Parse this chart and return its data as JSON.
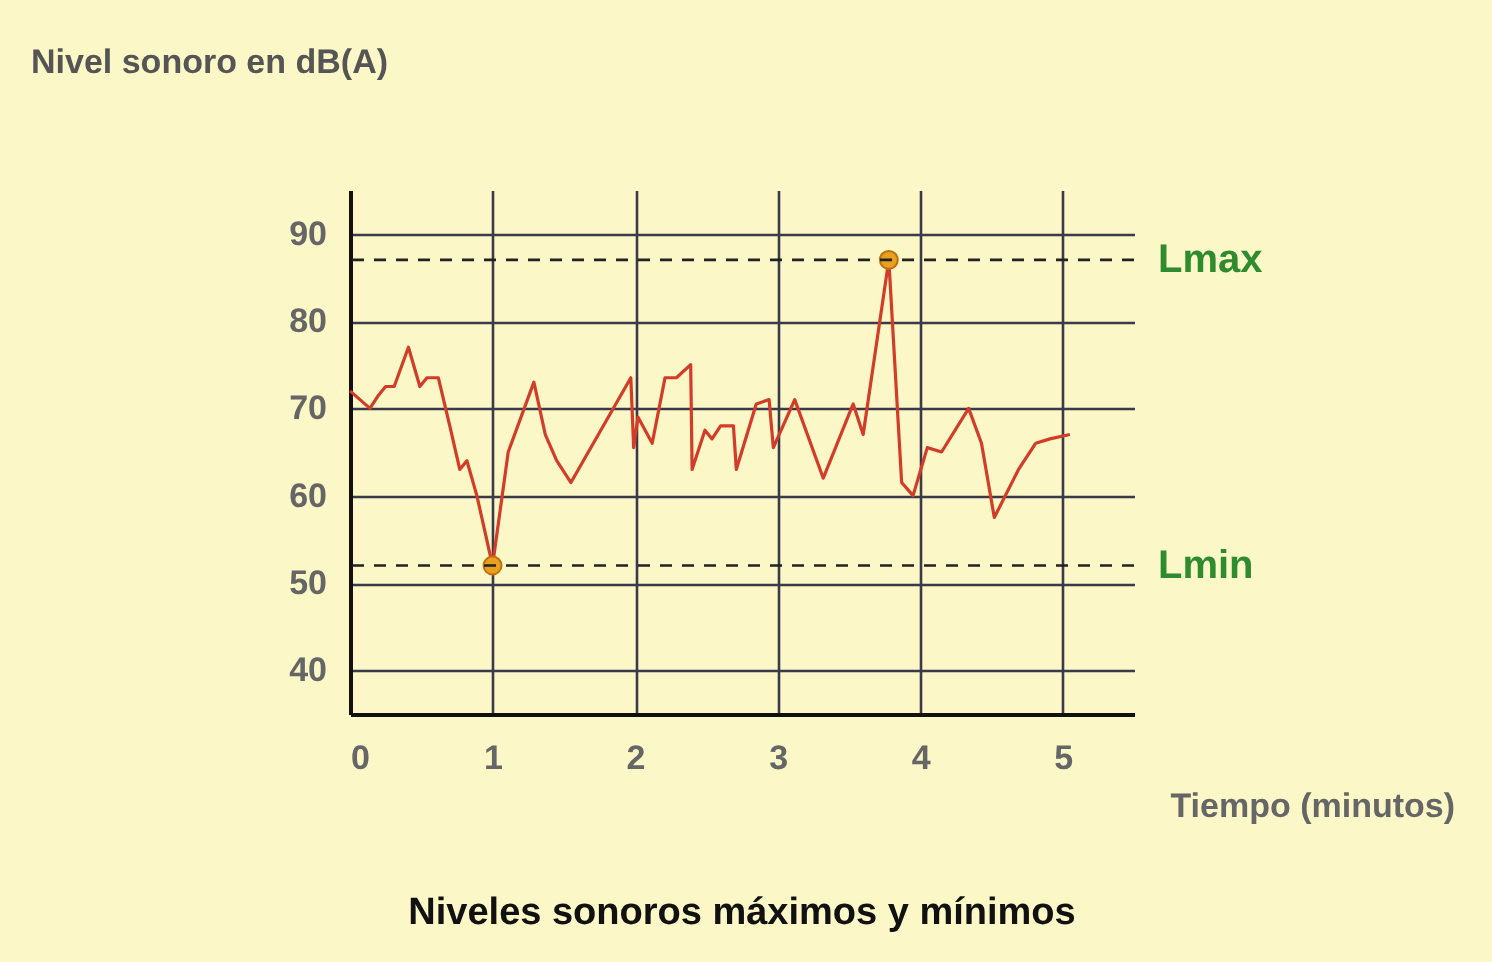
{
  "chart_data": {
    "type": "line",
    "title": "Niveles sonoros máximos y mínimos",
    "xlabel": "Tiempo (minutos)",
    "ylabel": "Nivel sonoro en dB(A)",
    "xlim": [
      0,
      5.5
    ],
    "ylim": [
      35,
      95
    ],
    "xticks": [
      0,
      1,
      2,
      3,
      4,
      5
    ],
    "yticks": [
      40,
      50,
      60,
      70,
      80,
      90
    ],
    "grid": true,
    "line_style": "solid",
    "series": [
      {
        "type": "line",
        "color": "#d23c28",
        "x": [
          0,
          0.07,
          0.14,
          0.2,
          0.25,
          0.31,
          0.41,
          0.49,
          0.54,
          0.62,
          0.7,
          0.77,
          0.82,
          0.89,
          1.0,
          1.11,
          1.29,
          1.37,
          1.45,
          1.55,
          1.97,
          1.99,
          2.02,
          2.12,
          2.21,
          2.29,
          2.39,
          2.4,
          2.49,
          2.54,
          2.6,
          2.69,
          2.71,
          2.85,
          2.94,
          2.97,
          3.12,
          3.32,
          3.53,
          3.6,
          3.78,
          3.87,
          3.95,
          4.05,
          4.15,
          4.34,
          4.43,
          4.52,
          4.69,
          4.81,
          4.91,
          5.05
        ],
        "values": [
          72,
          71,
          70,
          71.5,
          72.5,
          72.5,
          77,
          72.5,
          73.5,
          73.5,
          68,
          63,
          64,
          60,
          52,
          65,
          73,
          67,
          64,
          61.5,
          73.5,
          65.5,
          69,
          66,
          73.5,
          73.5,
          75,
          63,
          67.5,
          66.5,
          68,
          68,
          63,
          70.5,
          71,
          65.5,
          71,
          62,
          70.5,
          67,
          87,
          61.5,
          60,
          65.5,
          65,
          70,
          66,
          57.5,
          63,
          66,
          66.5,
          67
        ]
      },
      {
        "type": "scatter",
        "color": "#e8a020",
        "marker": "circle",
        "x": [
          1.0,
          3.78
        ],
        "values": [
          52,
          87
        ]
      }
    ],
    "ref_lines": [
      {
        "axis": "y",
        "value": 87,
        "label": "Lmax",
        "color": "#222222",
        "line_style": "dashed"
      },
      {
        "axis": "y",
        "value": 52,
        "label": "Lmin",
        "color": "#222222",
        "line_style": "dashed"
      }
    ]
  }
}
